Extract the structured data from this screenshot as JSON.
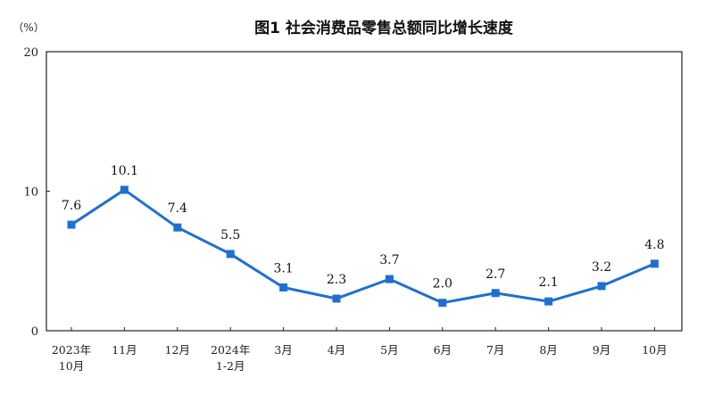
{
  "chart_data": {
    "type": "line",
    "title": "图1 社会消费品零售总额同比增长速度",
    "unit_label": "（%）",
    "categories": [
      [
        "2023年",
        "10月"
      ],
      [
        "11月"
      ],
      [
        "12月"
      ],
      [
        "2024年",
        "1-2月"
      ],
      [
        "3月"
      ],
      [
        "4月"
      ],
      [
        "5月"
      ],
      [
        "6月"
      ],
      [
        "7月"
      ],
      [
        "8月"
      ],
      [
        "9月"
      ],
      [
        "10月"
      ]
    ],
    "series": [
      {
        "values": [
          7.6,
          10.1,
          7.4,
          5.5,
          3.1,
          2.3,
          3.7,
          2.0,
          2.7,
          2.1,
          3.2,
          4.8
        ],
        "color": "#1f6fd1",
        "marker": "square"
      }
    ],
    "data_labels": [
      "7.6",
      "10.1",
      "7.4",
      "5.5",
      "3.1",
      "2.3",
      "3.7",
      "2.0",
      "2.7",
      "2.1",
      "3.2",
      "4.8"
    ],
    "ylim": [
      0,
      20
    ],
    "yticks": [
      0,
      10,
      20
    ],
    "ytick_labels": [
      "0",
      "10",
      "20"
    ],
    "grid": false,
    "legend": "none"
  }
}
